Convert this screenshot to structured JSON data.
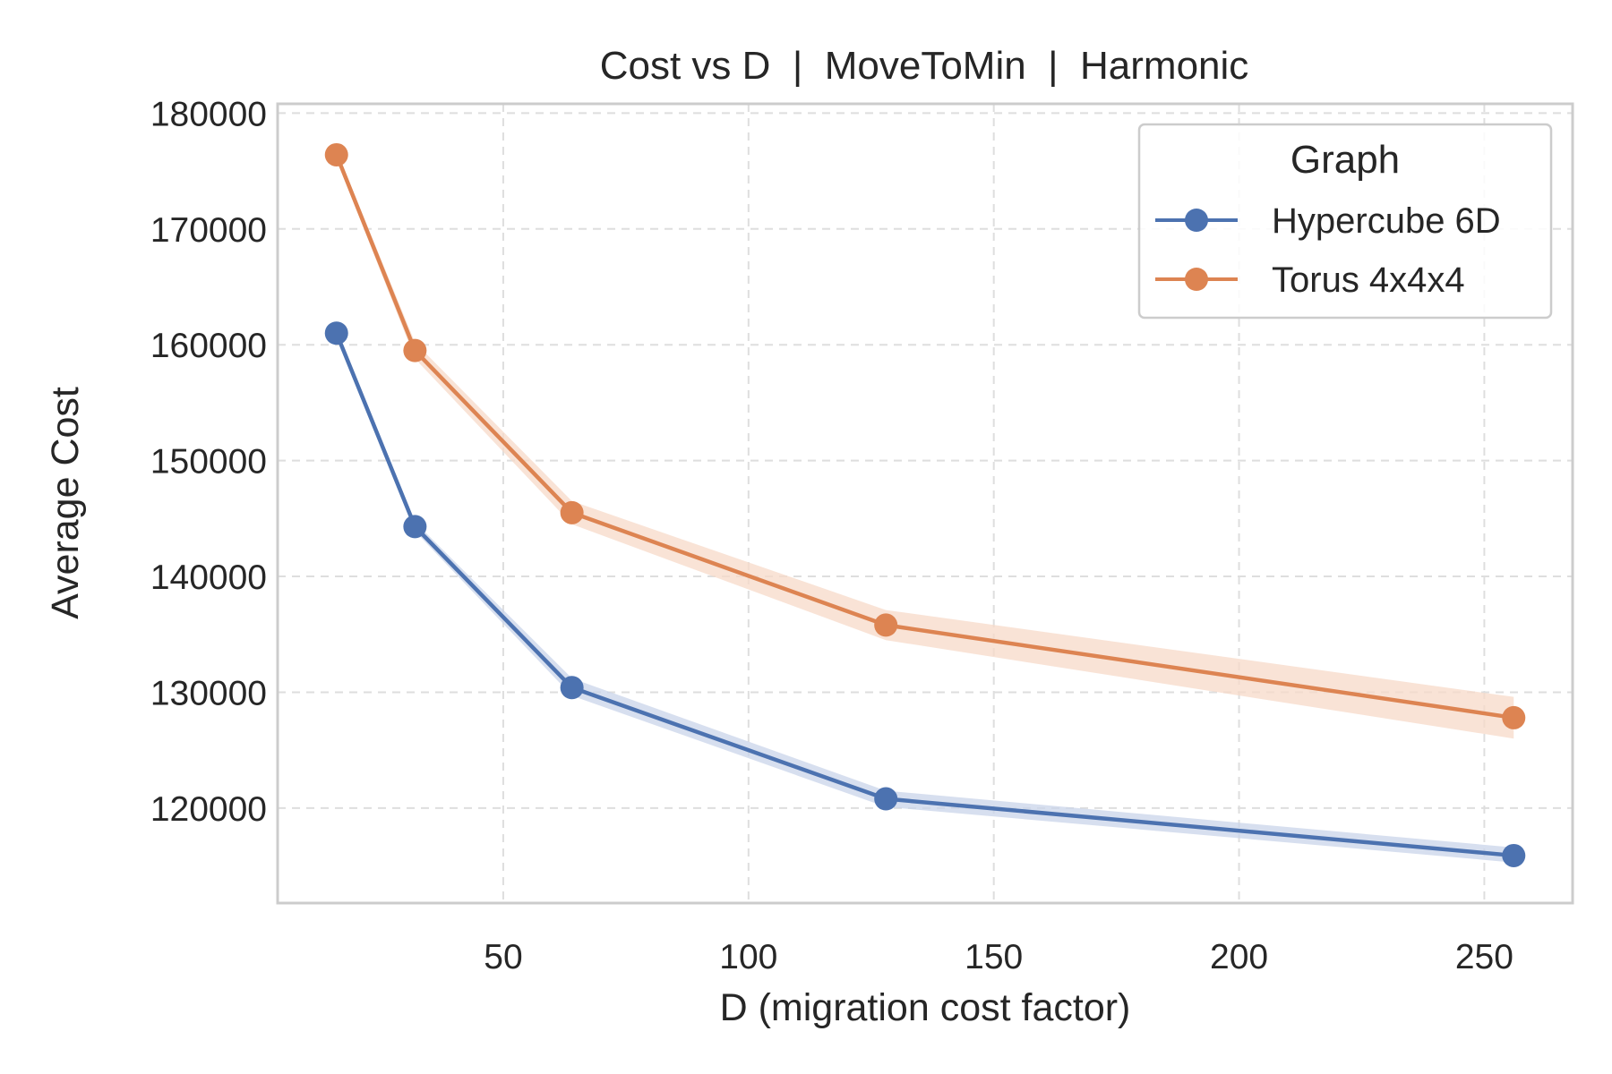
{
  "chart_data": {
    "type": "line",
    "title": "Cost vs D  |  MoveToMin  |  Harmonic",
    "xlabel": "D (migration cost factor)",
    "ylabel": "Average Cost",
    "x": [
      16,
      32,
      64,
      128,
      256
    ],
    "xlim": [
      4,
      268
    ],
    "ylim": [
      111800,
      180800
    ],
    "xticks": [
      50,
      100,
      150,
      200,
      250
    ],
    "yticks": [
      120000,
      130000,
      140000,
      150000,
      160000,
      170000,
      180000
    ],
    "xtick_labels": [
      "50",
      "100",
      "150",
      "200",
      "250"
    ],
    "ytick_labels": [
      "120000",
      "130000",
      "140000",
      "150000",
      "160000",
      "170000",
      "180000"
    ],
    "grid": true,
    "legend": {
      "title": "Graph",
      "placement": "top-right"
    },
    "series": [
      {
        "name": "Hypercube 6D",
        "color": "#4c72b0",
        "band_color": "#c9d4ea",
        "values": [
          161000,
          144300,
          130400,
          120800,
          115900
        ],
        "lower": [
          160700,
          143900,
          129700,
          120100,
          115300
        ],
        "upper": [
          161300,
          144700,
          131200,
          121500,
          116600
        ]
      },
      {
        "name": "Torus 4x4x4",
        "color": "#dd8452",
        "band_color": "#f7d9c8",
        "values": [
          176400,
          159500,
          145500,
          135800,
          127800
        ],
        "lower": [
          176000,
          158800,
          144500,
          134500,
          126000
        ],
        "upper": [
          176800,
          160200,
          146500,
          137100,
          129600
        ]
      }
    ]
  }
}
